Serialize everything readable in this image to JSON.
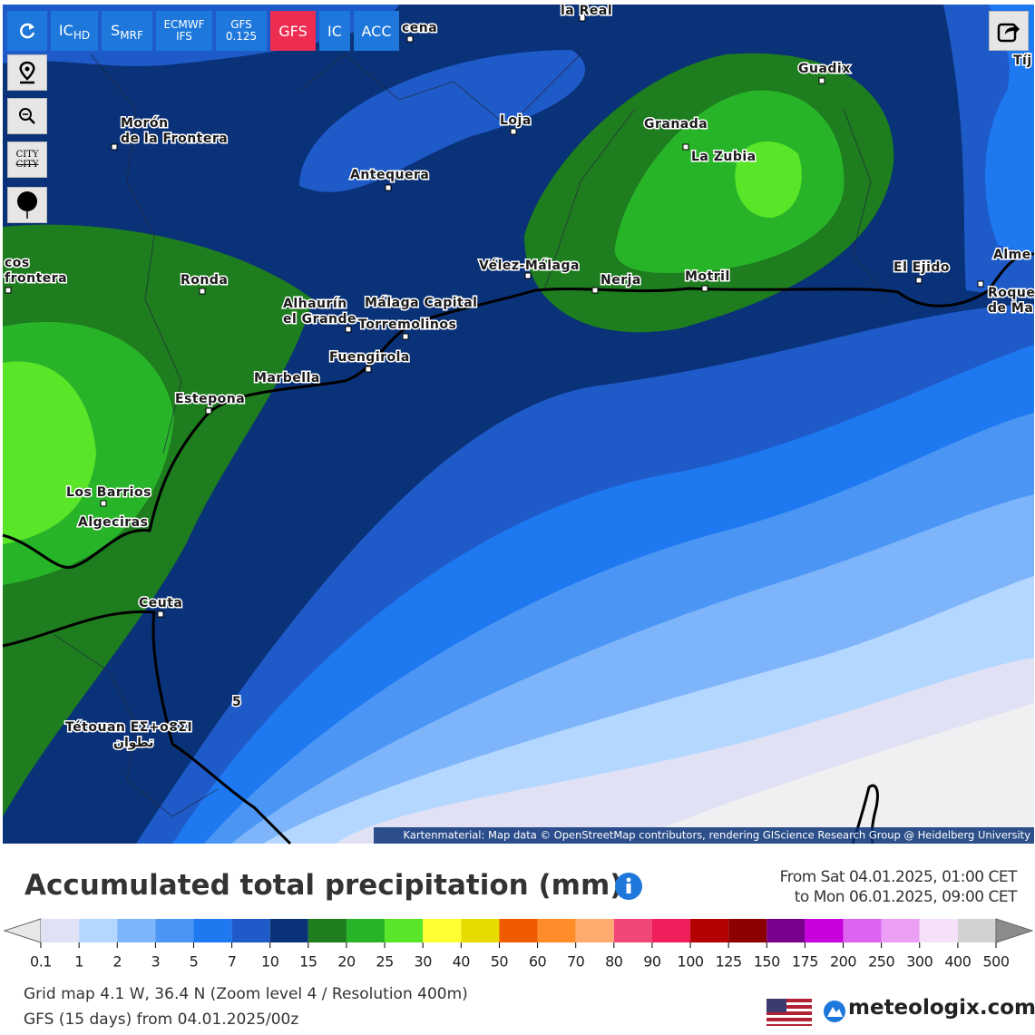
{
  "toolbar": {
    "buttons": [
      {
        "label": "IC",
        "sub": "HD"
      },
      {
        "label": "S",
        "sub": "MRF"
      },
      {
        "label": "ECMWF",
        "sub": "IFS"
      },
      {
        "label": "GFS",
        "sub": "0.125"
      },
      {
        "label": "GFS"
      },
      {
        "label": "IC"
      },
      {
        "label": "ACC"
      }
    ],
    "city_button": [
      "CITY",
      "CITY"
    ]
  },
  "map": {
    "places": [
      {
        "lines": [
          "la Real"
        ]
      },
      {
        "lines": [
          "cena"
        ]
      },
      {
        "lines": [
          "Morón",
          "de la Frontera"
        ]
      },
      {
        "lines": [
          "Loja"
        ]
      },
      {
        "lines": [
          "Guadix"
        ]
      },
      {
        "lines": [
          "Granada"
        ]
      },
      {
        "lines": [
          "La Zubia"
        ]
      },
      {
        "lines": [
          "Antequera"
        ]
      },
      {
        "lines": [
          "Ronda"
        ]
      },
      {
        "lines": [
          "cos",
          "frontera"
        ]
      },
      {
        "lines": [
          "Vélez-Málaga"
        ]
      },
      {
        "lines": [
          "Nerja"
        ]
      },
      {
        "lines": [
          "Motril"
        ]
      },
      {
        "lines": [
          "El Ejido"
        ]
      },
      {
        "lines": [
          "Alme"
        ]
      },
      {
        "lines": [
          "Roque",
          "de Ma"
        ]
      },
      {
        "lines": [
          "Alhaurín",
          "el Grande"
        ]
      },
      {
        "lines": [
          "Málaga Capital"
        ]
      },
      {
        "lines": [
          "Torremolinos"
        ]
      },
      {
        "lines": [
          "Fuengirola"
        ]
      },
      {
        "lines": [
          "Marbella"
        ]
      },
      {
        "lines": [
          "Estepona"
        ]
      },
      {
        "lines": [
          "Los Barrios"
        ]
      },
      {
        "lines": [
          "Algeciras"
        ]
      },
      {
        "lines": [
          "Ceuta"
        ]
      },
      {
        "lines": [
          "Tétouan ΕΣ+οⵓΣⵏ",
          "تطوان"
        ]
      },
      {
        "lines": [
          "Tíj"
        ]
      },
      {
        "lines": [
          "5"
        ]
      }
    ],
    "attribution": "Kartenmaterial: Map data © OpenStreetMap contributors, rendering GIScience Research Group @ Heidelberg University"
  },
  "legend": {
    "title": "Accumulated total precipitation (mm)",
    "period": [
      "From Sat 04.01.2025, 01:00 CET",
      "to Mon 06.01.2025, 09:00 CET"
    ],
    "ticks": [
      0.1,
      1,
      2,
      3,
      5,
      7,
      10,
      15,
      20,
      25,
      30,
      40,
      50,
      60,
      70,
      80,
      90,
      100,
      125,
      150,
      175,
      200,
      250,
      300,
      400,
      500
    ],
    "colors": [
      "#e1e1f5",
      "#b4d7ff",
      "#7db4fa",
      "#4b96f5",
      "#1e78f0",
      "#1e5ac8",
      "#0a3278",
      "#1e7d1e",
      "#28b428",
      "#5ae628",
      "#ffff32",
      "#e6dc00",
      "#f05a00",
      "#ff8c28",
      "#ffaa6e",
      "#f04678",
      "#f01e5a",
      "#b40000",
      "#8c0000",
      "#78008c",
      "#c800dc",
      "#dc64f0",
      "#eba0f5",
      "#f5e1fa",
      "#d2d2d2"
    ],
    "below_color": "#e8e8e8",
    "above_color": "#8c8c8c"
  },
  "footer": {
    "lines": [
      "Grid map 4.1 W, 36.4 N (Zoom level 4 / Resolution 400m)",
      "GFS (15 days) from 04.01.2025/00z"
    ],
    "logo": "meteologix.com"
  }
}
